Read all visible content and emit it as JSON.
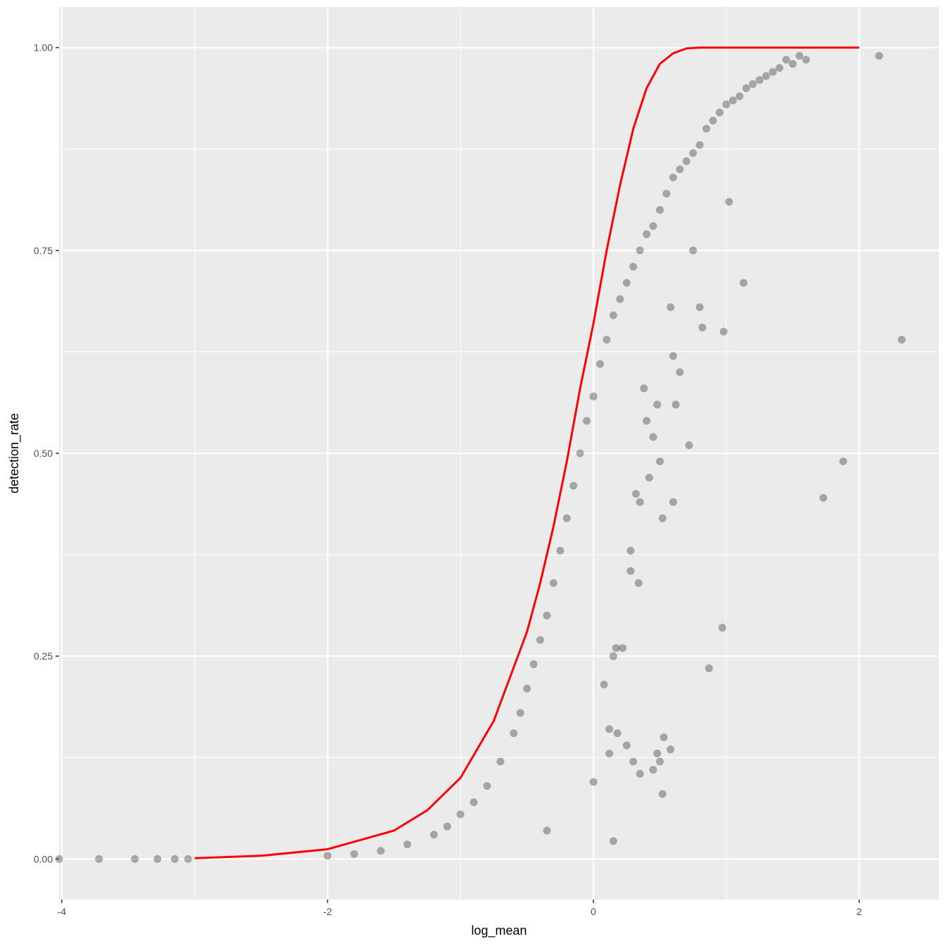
{
  "chart_data": {
    "type": "scatter",
    "xlabel": "log_mean",
    "ylabel": "detection_rate",
    "xlim": [
      -4.02,
      2.6
    ],
    "ylim": [
      -0.05,
      1.05
    ],
    "x_ticks": [
      -4,
      -2,
      0,
      2
    ],
    "x_tick_labels": [
      "-4",
      "-2",
      "0",
      "2"
    ],
    "y_ticks": [
      0,
      0.25,
      0.5,
      0.75,
      1
    ],
    "y_tick_labels": [
      "0.00",
      "0.25",
      "0.50",
      "0.75",
      "1.00"
    ],
    "grid": true,
    "legend": "none",
    "point_color": "#000000",
    "point_opacity": 0.3,
    "line_color": "#ff0000",
    "panel_background": "#ebebeb",
    "grid_color": "#ffffff",
    "fit_line": {
      "name": "",
      "x": [
        -3.0,
        -2.5,
        -2.0,
        -1.5,
        -1.25,
        -1.0,
        -0.75,
        -0.5,
        -0.4,
        -0.3,
        -0.2,
        -0.1,
        0.0,
        0.1,
        0.2,
        0.3,
        0.4,
        0.5,
        0.6,
        0.7,
        0.8,
        1.0,
        1.5,
        2.0
      ],
      "y": [
        0.001,
        0.004,
        0.012,
        0.035,
        0.06,
        0.1,
        0.17,
        0.28,
        0.34,
        0.41,
        0.49,
        0.58,
        0.66,
        0.75,
        0.83,
        0.9,
        0.95,
        0.98,
        0.993,
        0.999,
        1.0,
        1.0,
        1.0,
        1.0
      ]
    },
    "points": [
      [
        -4.02,
        0
      ],
      [
        -3.72,
        0
      ],
      [
        -3.45,
        0
      ],
      [
        -3.28,
        0
      ],
      [
        -3.15,
        0
      ],
      [
        -3.05,
        0
      ],
      [
        2.15,
        0.99
      ],
      [
        2.32,
        0.64
      ],
      [
        1.88,
        0.49
      ],
      [
        1.73,
        0.445
      ],
      [
        1.02,
        0.81
      ],
      [
        1.13,
        0.71
      ],
      [
        0.98,
        0.65
      ],
      [
        0.97,
        0.285
      ],
      [
        0.87,
        0.235
      ],
      [
        0.8,
        0.68
      ],
      [
        0.82,
        0.655
      ],
      [
        0.75,
        0.75
      ],
      [
        0.6,
        0.44
      ],
      [
        0.72,
        0.51
      ],
      [
        0.62,
        0.56
      ],
      [
        0.5,
        0.49
      ],
      [
        0.48,
        0.56
      ],
      [
        0.28,
        0.355
      ],
      [
        0.28,
        0.38
      ],
      [
        0.34,
        0.34
      ],
      [
        0.15,
        0.25
      ],
      [
        0.17,
        0.26
      ],
      [
        0.22,
        0.26
      ],
      [
        0.08,
        0.215
      ],
      [
        0.12,
        0.16
      ],
      [
        0.18,
        0.155
      ],
      [
        0.25,
        0.14
      ],
      [
        0.3,
        0.12
      ],
      [
        0.35,
        0.105
      ],
      [
        0.12,
        0.13
      ],
      [
        0.48,
        0.13
      ],
      [
        0.53,
        0.15
      ],
      [
        0.58,
        0.135
      ],
      [
        0.5,
        0.12
      ],
      [
        0.45,
        0.11
      ],
      [
        0.52,
        0.08
      ],
      [
        0.0,
        0.095
      ],
      [
        0.15,
        0.022
      ],
      [
        -0.35,
        0.035
      ],
      [
        0.4,
        0.54
      ],
      [
        0.45,
        0.52
      ],
      [
        0.38,
        0.58
      ],
      [
        0.52,
        0.42
      ],
      [
        0.6,
        0.62
      ],
      [
        0.65,
        0.6
      ],
      [
        0.58,
        0.68
      ],
      [
        0.42,
        0.47
      ],
      [
        0.35,
        0.44
      ],
      [
        0.32,
        0.45
      ],
      [
        1.6,
        0.985
      ],
      [
        1.55,
        0.99
      ],
      [
        1.5,
        0.98
      ],
      [
        1.45,
        0.985
      ],
      [
        1.4,
        0.975
      ],
      [
        1.35,
        0.97
      ],
      [
        1.3,
        0.965
      ],
      [
        1.25,
        0.96
      ],
      [
        1.2,
        0.955
      ],
      [
        1.15,
        0.95
      ],
      [
        1.1,
        0.94
      ],
      [
        1.05,
        0.935
      ],
      [
        1.0,
        0.93
      ],
      [
        0.95,
        0.92
      ],
      [
        0.9,
        0.91
      ],
      [
        0.85,
        0.9
      ],
      [
        0.8,
        0.88
      ],
      [
        0.75,
        0.87
      ],
      [
        0.7,
        0.86
      ],
      [
        0.65,
        0.85
      ],
      [
        0.6,
        0.84
      ],
      [
        0.55,
        0.82
      ],
      [
        0.5,
        0.8
      ],
      [
        0.45,
        0.78
      ],
      [
        0.4,
        0.77
      ],
      [
        0.35,
        0.75
      ],
      [
        0.3,
        0.73
      ],
      [
        0.25,
        0.71
      ],
      [
        0.2,
        0.69
      ],
      [
        0.15,
        0.67
      ],
      [
        0.1,
        0.64
      ],
      [
        0.05,
        0.61
      ],
      [
        0.0,
        0.57
      ],
      [
        -0.05,
        0.54
      ],
      [
        -0.1,
        0.5
      ],
      [
        -0.15,
        0.46
      ],
      [
        -0.2,
        0.42
      ],
      [
        -0.25,
        0.38
      ],
      [
        -0.3,
        0.34
      ],
      [
        -0.35,
        0.3
      ],
      [
        -0.4,
        0.27
      ],
      [
        -0.45,
        0.24
      ],
      [
        -0.5,
        0.21
      ],
      [
        -0.55,
        0.18
      ],
      [
        -0.6,
        0.155
      ],
      [
        -0.7,
        0.12
      ],
      [
        -0.8,
        0.09
      ],
      [
        -0.9,
        0.07
      ],
      [
        -1.0,
        0.055
      ],
      [
        -1.1,
        0.04
      ],
      [
        -1.2,
        0.03
      ],
      [
        -1.4,
        0.018
      ],
      [
        -1.6,
        0.01
      ],
      [
        -1.8,
        0.006
      ],
      [
        -2.0,
        0.004
      ]
    ]
  }
}
